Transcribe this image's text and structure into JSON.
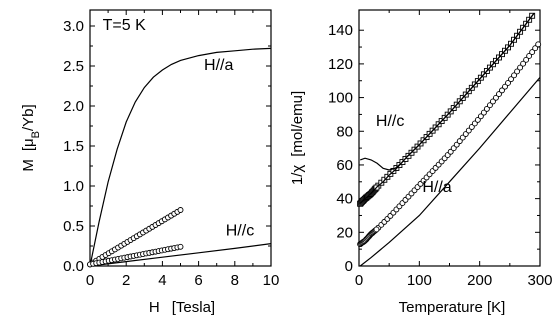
{
  "chart_data": [
    {
      "type": "scatter",
      "panel": "left",
      "xlabel_main": "H",
      "xlabel_unit": "[Tesla]",
      "ylabel_main": "M",
      "ylabel_unit_pre": "[μ",
      "ylabel_unit_sub": "B",
      "ylabel_unit_post": "/Yb]",
      "xlim": [
        0,
        10
      ],
      "ylim": [
        0,
        3.2
      ],
      "xticks": [
        0,
        2,
        4,
        6,
        8,
        10
      ],
      "yticks": [
        0.0,
        0.5,
        1.0,
        1.5,
        2.0,
        2.5,
        3.0
      ],
      "xticklabels": [
        "0",
        "2",
        "4",
        "6",
        "8",
        "10"
      ],
      "yticklabels": [
        "0.0",
        "0.5",
        "1.0",
        "1.5",
        "2.0",
        "2.5",
        "3.0"
      ],
      "annotations": [
        {
          "text": "T=5 K",
          "x": 0.7,
          "y": 2.95
        },
        {
          "text": "H//a",
          "x": 6.3,
          "y": 2.45
        },
        {
          "text": "H//c",
          "x": 7.5,
          "y": 0.38
        }
      ],
      "series": [
        {
          "style": "line",
          "x": [
            0,
            0.5,
            1,
            1.5,
            2,
            2.5,
            3,
            3.5,
            4,
            4.5,
            5,
            6,
            7,
            8,
            9,
            10
          ],
          "y": [
            0,
            0.55,
            1.05,
            1.46,
            1.8,
            2.05,
            2.23,
            2.36,
            2.45,
            2.52,
            2.57,
            2.63,
            2.67,
            2.69,
            2.71,
            2.72
          ]
        },
        {
          "style": "line",
          "x": [
            0,
            2,
            4,
            6,
            8,
            10
          ],
          "y": [
            0,
            0.055,
            0.11,
            0.165,
            0.22,
            0.28
          ]
        },
        {
          "style": "markers",
          "x_range": [
            0,
            5
          ],
          "count": 30,
          "y_start": 0.02,
          "y_end": 0.7
        },
        {
          "style": "markers",
          "x_range": [
            0,
            5
          ],
          "count": 30,
          "y_start": 0.02,
          "y_end": 0.24
        }
      ]
    },
    {
      "type": "scatter",
      "panel": "right",
      "xlabel": "Temperature  [K]",
      "ylabel_main": "1/χ",
      "ylabel_unit": "[mol/emu]",
      "xlim": [
        0,
        300
      ],
      "ylim": [
        0,
        152
      ],
      "xticks": [
        0,
        100,
        200,
        300
      ],
      "yticks": [
        0,
        20,
        40,
        60,
        80,
        100,
        120,
        140
      ],
      "xticklabels": [
        "0",
        "100",
        "200",
        "300"
      ],
      "yticklabels": [
        "0",
        "20",
        "40",
        "60",
        "80",
        "100",
        "120",
        "140"
      ],
      "annotations": [
        {
          "text": "H//c",
          "x": 28,
          "y": 83
        },
        {
          "text": "H//a",
          "x": 105,
          "y": 44
        }
      ],
      "series": [
        {
          "style": "markers",
          "marker": "square",
          "x_range": [
            2,
            290
          ],
          "y_points": [
            [
              2,
              37
            ],
            [
              10,
              40
            ],
            [
              20,
              43
            ],
            [
              30,
              47
            ],
            [
              50,
              54
            ],
            [
              70,
              61
            ],
            [
              100,
              72
            ],
            [
              150,
              91
            ],
            [
              200,
              111
            ],
            [
              250,
              131
            ],
            [
              290,
              150
            ]
          ]
        },
        {
          "style": "line",
          "x": [
            2,
            10,
            20,
            30,
            40,
            50,
            60,
            70,
            80,
            100,
            150,
            200,
            250,
            290
          ],
          "y": [
            37,
            40,
            43,
            47,
            50,
            54,
            57,
            61,
            65,
            72,
            91,
            111,
            131,
            150
          ]
        },
        {
          "style": "line",
          "x": [
            2,
            10,
            20,
            30,
            40,
            50,
            60,
            70,
            80,
            100,
            150,
            200,
            250,
            290
          ],
          "y": [
            63,
            64,
            63,
            61,
            58,
            57,
            58,
            61,
            65,
            72,
            91,
            111,
            131,
            150
          ]
        },
        {
          "style": "markers",
          "marker": "circle",
          "x_range": [
            2,
            300
          ],
          "y_points": [
            [
              2,
              13
            ],
            [
              10,
              15
            ],
            [
              20,
              19
            ],
            [
              30,
              22
            ],
            [
              50,
              29
            ],
            [
              100,
              48
            ],
            [
              150,
              67
            ],
            [
              200,
              88
            ],
            [
              250,
              110
            ],
            [
              300,
              133
            ]
          ]
        },
        {
          "style": "line",
          "x": [
            2,
            20,
            50,
            100,
            150,
            200,
            250,
            300
          ],
          "y": [
            0,
            5,
            14,
            30,
            50,
            70,
            91,
            112
          ]
        }
      ]
    }
  ]
}
